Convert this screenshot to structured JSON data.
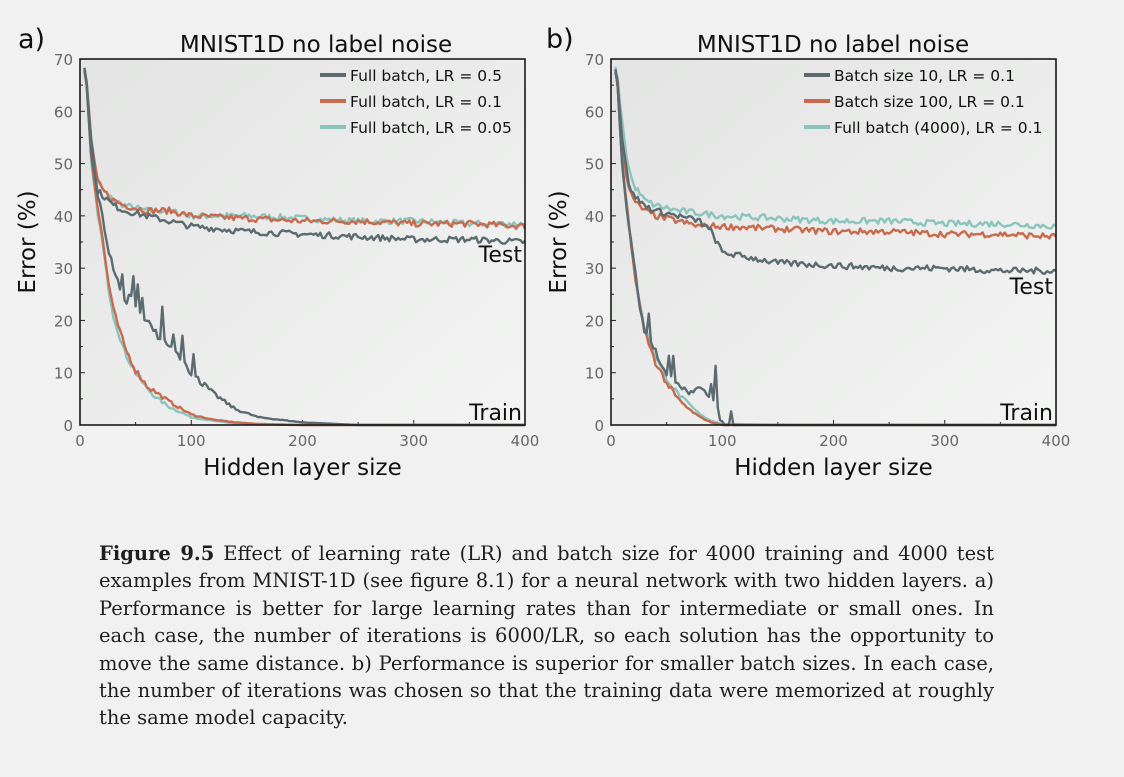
{
  "chart_data": [
    {
      "type": "line",
      "panel_label": "a)",
      "title": "MNIST1D no label noise",
      "xlabel": "Hidden layer size",
      "ylabel": "Error (%)",
      "xlim": [
        0,
        400
      ],
      "ylim": [
        0,
        70
      ],
      "xticks": [
        0,
        100,
        200,
        300,
        400
      ],
      "yticks": [
        0,
        10,
        20,
        30,
        40,
        50,
        60,
        70
      ],
      "legend_position": "top-right",
      "annotations": [
        "Test",
        "Train"
      ],
      "series": [
        {
          "name": "Full batch, LR = 0.5",
          "color": "#5c6b70",
          "test": {
            "x": [
              5,
              10,
              15,
              20,
              30,
              40,
              60,
              80,
              100,
              150,
              200,
              250,
              300,
              350,
              400
            ],
            "y": [
              68,
              55,
              45,
              44,
              42,
              41,
              40,
              39,
              38,
              37,
              36.5,
              36,
              35.5,
              35.5,
              35
            ]
          },
          "train": {
            "x": [
              5,
              10,
              15,
              20,
              25,
              30,
              40,
              50,
              60,
              70,
              80,
              90,
              100,
              120,
              140,
              160,
              200,
              250,
              300,
              400
            ],
            "y": [
              68,
              52,
              45,
              40,
              34,
              30,
              24,
              23,
              20,
              17,
              15,
              13,
              10,
              6,
              3,
              1.5,
              0.5,
              0,
              0,
              0
            ]
          }
        },
        {
          "name": "Full batch, LR = 0.1",
          "color": "#c76a4e",
          "test": {
            "x": [
              5,
              10,
              15,
              20,
              30,
              40,
              60,
              80,
              100,
              150,
              200,
              250,
              300,
              350,
              400
            ],
            "y": [
              68,
              55,
              47,
              45,
              43,
              42,
              41,
              41,
              40,
              39.5,
              39,
              39,
              38.5,
              38.5,
              38
            ]
          },
          "train": {
            "x": [
              5,
              10,
              15,
              20,
              25,
              30,
              40,
              50,
              60,
              70,
              80,
              100,
              120,
              140,
              160,
              200,
              250,
              300,
              400
            ],
            "y": [
              68,
              52,
              43,
              36,
              28,
              22,
              15,
              10.5,
              7.5,
              6,
              4.5,
              2,
              1,
              0.5,
              0.2,
              0,
              0,
              0,
              0
            ]
          }
        },
        {
          "name": "Full batch, LR = 0.05",
          "color": "#8ac5bd",
          "test": {
            "x": [
              5,
              10,
              15,
              20,
              30,
              40,
              60,
              80,
              100,
              150,
              200,
              250,
              300,
              350,
              400
            ],
            "y": [
              68,
              55,
              47,
              45,
              43,
              42,
              41,
              41,
              40,
              40,
              39.5,
              39,
              39,
              38.5,
              38.5
            ]
          },
          "train": {
            "x": [
              5,
              10,
              15,
              20,
              25,
              30,
              40,
              50,
              60,
              70,
              80,
              100,
              120,
              140,
              160,
              200,
              250,
              300,
              400
            ],
            "y": [
              68,
              50,
              42,
              35,
              27,
              21,
              14,
              10,
              7,
              5,
              3.5,
              1.5,
              0.8,
              0.3,
              0.1,
              0,
              0,
              0,
              0
            ]
          }
        }
      ]
    },
    {
      "type": "line",
      "panel_label": "b)",
      "title": "MNIST1D no label noise",
      "xlabel": "Hidden layer size",
      "ylabel": "Error (%)",
      "xlim": [
        0,
        400
      ],
      "ylim": [
        0,
        70
      ],
      "xticks": [
        0,
        100,
        200,
        300,
        400
      ],
      "yticks": [
        0,
        10,
        20,
        30,
        40,
        50,
        60,
        70
      ],
      "legend_position": "top-right",
      "annotations": [
        "Test",
        "Train"
      ],
      "series": [
        {
          "name": "Batch size 10, LR = 0.1",
          "color": "#5c6b70",
          "test": {
            "x": [
              5,
              10,
              15,
              20,
              30,
              40,
              60,
              80,
              90,
              100,
              150,
              200,
              250,
              300,
              350,
              400
            ],
            "y": [
              68,
              55,
              47,
              44,
              42,
              41,
              40,
              39,
              37,
              33,
              31,
              30.5,
              30,
              30,
              29.5,
              29.5
            ]
          },
          "train": {
            "x": [
              5,
              10,
              15,
              20,
              25,
              30,
              40,
              50,
              60,
              70,
              80,
              90,
              95,
              98,
              100,
              150,
              200,
              300,
              400
            ],
            "y": [
              68,
              50,
              40,
              32,
              24,
              18,
              14,
              10,
              8,
              6,
              7,
              5,
              4,
              1,
              0,
              0,
              0,
              0,
              0
            ]
          }
        },
        {
          "name": "Batch size 100, LR = 0.1",
          "color": "#c76a4e",
          "test": {
            "x": [
              5,
              10,
              15,
              20,
              30,
              40,
              60,
              80,
              100,
              150,
              200,
              250,
              300,
              350,
              400
            ],
            "y": [
              68,
              54,
              46,
              43,
              41,
              40,
              39,
              38,
              38,
              37.5,
              37,
              37,
              36.5,
              36.5,
              36
            ]
          },
          "train": {
            "x": [
              5,
              10,
              15,
              20,
              25,
              30,
              40,
              50,
              60,
              70,
              80,
              90,
              100,
              150,
              200,
              300,
              400
            ],
            "y": [
              68,
              50,
              40,
              31,
              24,
              18,
              12,
              8,
              5,
              3,
              1.5,
              0.5,
              0,
              0,
              0,
              0,
              0
            ]
          }
        },
        {
          "name": "Full batch (4000), LR = 0.1",
          "color": "#8ac5bd",
          "test": {
            "x": [
              5,
              10,
              15,
              20,
              30,
              40,
              60,
              80,
              100,
              150,
              200,
              250,
              300,
              350,
              400
            ],
            "y": [
              68,
              58,
              50,
              46,
              43,
              42,
              41,
              40.5,
              40,
              39.5,
              39,
              39,
              38.5,
              38.5,
              38
            ]
          },
          "train": {
            "x": [
              5,
              10,
              15,
              20,
              25,
              30,
              40,
              50,
              60,
              70,
              80,
              90,
              100,
              150,
              200,
              300,
              400
            ],
            "y": [
              68,
              50,
              40,
              32,
              24,
              19,
              13,
              9,
              6,
              4,
              2,
              0.8,
              0.2,
              0,
              0,
              0,
              0
            ]
          }
        }
      ]
    }
  ],
  "caption": {
    "label": "Figure 9.5",
    "text": " Effect of learning rate (LR) and batch size for 4000 training and 4000 test examples from MNIST-1D (see figure 8.1) for a neural network with two hidden layers.  a) Performance is better for large learning rates than for intermediate or small ones. In each case, the number of iterations is 6000/LR, so each solution has the opportunity to move the same distance. b) Performance is superior for smaller batch sizes. In each case, the number of iterations was chosen so that the training data were memorized at roughly the same model capacity."
  }
}
